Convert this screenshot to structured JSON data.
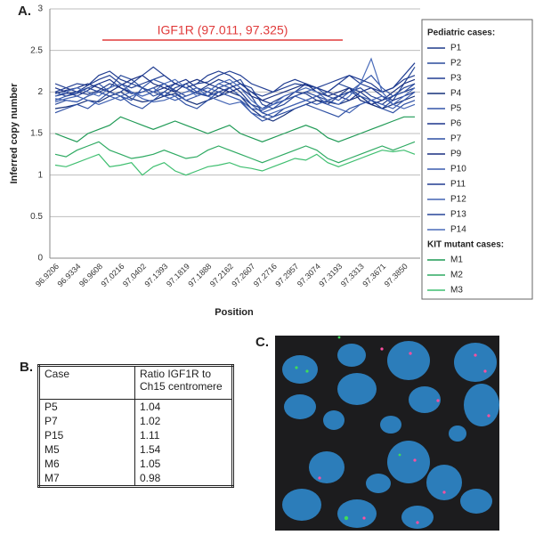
{
  "panel_labels": [
    "A.",
    "B.",
    "C."
  ],
  "chart_data": {
    "type": "line",
    "annotation": "IGF1R (97.011, 97.325)",
    "xlabel": "Position",
    "ylabel": "Inferred copy number",
    "categories": [
      "96.9206",
      null,
      "96.9334",
      null,
      "96.9608",
      null,
      "97.0216",
      null,
      "97.0402",
      null,
      "97.1393",
      null,
      "97.1819",
      null,
      "97.1888",
      null,
      "97.2162",
      null,
      "97.2607",
      null,
      "97.2716",
      null,
      "97.2957",
      null,
      "97.3074",
      null,
      "97.3193",
      null,
      "97.3313",
      null,
      "97.3671",
      null,
      "97.3850",
      null
    ],
    "ylim": [
      0,
      3
    ],
    "yticks": [
      0,
      0.5,
      1,
      1.5,
      2,
      2.5,
      3
    ],
    "grid": true,
    "series_groups": [
      {
        "title": "Pediatric cases:",
        "series": [
          {
            "name": "P1",
            "color": "#1f3a8a",
            "values": [
              1.95,
              1.98,
              2.0,
              1.97,
              2.02,
              2.1,
              2.05,
              1.98,
              2.0,
              2.05,
              2.1,
              2.02,
              1.95,
              2.0,
              2.08,
              2.15,
              2.1,
              2.0,
              1.85,
              1.8,
              1.88,
              1.95,
              2.0,
              1.98,
              1.9,
              1.85,
              1.95,
              2.05,
              2.0,
              1.9,
              1.85,
              1.95,
              2.0,
              2.05
            ]
          },
          {
            "name": "P2",
            "color": "#2a4b9b",
            "values": [
              1.85,
              1.9,
              1.88,
              1.95,
              2.0,
              2.05,
              2.2,
              2.15,
              2.05,
              1.95,
              2.0,
              2.1,
              2.05,
              1.98,
              1.95,
              2.05,
              2.1,
              2.15,
              1.95,
              1.75,
              1.7,
              1.8,
              1.85,
              1.9,
              1.95,
              2.0,
              2.1,
              2.05,
              1.95,
              1.85,
              1.8,
              1.9,
              2.1,
              2.3
            ]
          },
          {
            "name": "P3",
            "color": "#223f94",
            "values": [
              2.0,
              2.05,
              2.1,
              2.08,
              2.15,
              2.2,
              2.1,
              2.05,
              2.1,
              2.15,
              2.2,
              2.1,
              2.05,
              2.1,
              2.12,
              2.2,
              2.25,
              2.2,
              2.1,
              2.05,
              2.0,
              2.05,
              2.1,
              2.08,
              2.05,
              2.1,
              2.15,
              2.2,
              2.1,
              2.05,
              2.0,
              2.05,
              2.2,
              2.35
            ]
          },
          {
            "name": "P4",
            "color": "#15307a",
            "values": [
              1.8,
              1.82,
              1.85,
              1.9,
              1.88,
              1.95,
              2.0,
              1.92,
              1.88,
              1.9,
              1.95,
              1.98,
              1.9,
              1.85,
              1.9,
              1.95,
              2.0,
              1.95,
              1.8,
              1.7,
              1.65,
              1.72,
              1.8,
              1.85,
              1.9,
              1.88,
              1.85,
              1.9,
              1.95,
              1.85,
              1.8,
              1.85,
              1.9,
              1.95
            ]
          },
          {
            "name": "P5",
            "color": "#3355a8",
            "values": [
              1.9,
              1.95,
              2.0,
              2.05,
              2.1,
              2.0,
              1.95,
              1.9,
              2.05,
              2.15,
              2.1,
              2.0,
              1.9,
              1.95,
              2.0,
              2.1,
              2.05,
              1.95,
              1.85,
              1.75,
              1.8,
              1.9,
              1.95,
              2.0,
              2.05,
              1.95,
              1.9,
              2.0,
              2.1,
              2.2,
              2.05,
              1.95,
              2.0,
              2.1
            ]
          },
          {
            "name": "P6",
            "color": "#1c358c",
            "values": [
              2.05,
              2.0,
              1.95,
              2.02,
              2.1,
              2.15,
              2.05,
              2.0,
              1.95,
              2.0,
              2.05,
              2.1,
              2.15,
              2.05,
              2.0,
              1.95,
              2.05,
              2.1,
              2.0,
              1.9,
              1.85,
              1.9,
              2.0,
              2.1,
              2.05,
              2.0,
              1.95,
              1.9,
              2.0,
              2.05,
              1.95,
              1.9,
              1.95,
              2.0
            ]
          },
          {
            "name": "P7",
            "color": "#2d4fa3",
            "values": [
              1.75,
              1.8,
              1.85,
              1.8,
              1.9,
              2.0,
              1.95,
              1.85,
              1.8,
              1.9,
              2.0,
              1.95,
              1.85,
              1.8,
              1.9,
              2.0,
              1.95,
              1.9,
              1.75,
              1.65,
              1.7,
              1.75,
              1.8,
              1.85,
              1.8,
              1.75,
              1.7,
              1.8,
              1.85,
              1.9,
              1.8,
              1.75,
              1.85,
              1.9
            ]
          },
          {
            "name": "P9",
            "color": "#182f80",
            "values": [
              1.98,
              2.02,
              2.05,
              2.1,
              2.05,
              2.0,
              2.08,
              2.15,
              2.2,
              2.1,
              2.05,
              2.0,
              2.1,
              2.15,
              2.1,
              2.05,
              2.0,
              2.05,
              1.95,
              1.9,
              1.95,
              2.0,
              2.05,
              2.1,
              2.0,
              1.95,
              2.0,
              2.05,
              1.9,
              1.85,
              1.9,
              2.0,
              2.1,
              2.15
            ]
          },
          {
            "name": "P10",
            "color": "#3a5cae",
            "values": [
              1.92,
              1.9,
              1.88,
              1.95,
              2.0,
              1.95,
              1.9,
              1.95,
              2.0,
              2.05,
              1.95,
              1.9,
              1.95,
              2.0,
              2.05,
              2.0,
              1.95,
              1.9,
              1.8,
              1.78,
              1.85,
              1.9,
              1.95,
              1.9,
              1.85,
              1.9,
              1.95,
              2.0,
              1.95,
              1.9,
              1.85,
              1.8,
              1.9,
              2.0
            ]
          },
          {
            "name": "P11",
            "color": "#203c90",
            "values": [
              2.1,
              2.05,
              2.0,
              2.08,
              2.2,
              2.25,
              2.15,
              2.1,
              2.2,
              2.3,
              2.2,
              2.1,
              2.05,
              2.1,
              2.2,
              2.25,
              2.2,
              2.1,
              2.0,
              1.95,
              2.0,
              2.1,
              2.15,
              2.1,
              2.05,
              2.0,
              2.1,
              2.2,
              2.15,
              2.1,
              2.0,
              2.05,
              2.15,
              2.2
            ]
          },
          {
            "name": "P12",
            "color": "#4263b3",
            "values": [
              1.88,
              1.92,
              1.95,
              1.9,
              1.85,
              1.9,
              1.95,
              2.0,
              1.92,
              1.88,
              1.9,
              1.95,
              2.0,
              2.05,
              1.95,
              1.9,
              1.85,
              1.88,
              1.75,
              1.7,
              1.75,
              1.8,
              1.85,
              1.9,
              1.95,
              1.85,
              1.8,
              1.75,
              1.85,
              1.9,
              1.95,
              1.85,
              1.8,
              1.85
            ]
          },
          {
            "name": "P13",
            "color": "#264598",
            "values": [
              2.0,
              1.95,
              1.98,
              2.05,
              2.0,
              1.95,
              2.0,
              2.1,
              2.05,
              2.0,
              1.95,
              2.05,
              2.1,
              2.0,
              1.95,
              2.0,
              2.05,
              2.1,
              2.05,
              1.85,
              1.8,
              1.85,
              1.95,
              2.0,
              1.95,
              1.9,
              1.95,
              2.0,
              2.05,
              1.95,
              1.9,
              1.95,
              2.05,
              2.1
            ]
          },
          {
            "name": "P14",
            "color": "#4a6cba",
            "values": [
              1.95,
              2.0,
              2.05,
              2.0,
              1.95,
              2.05,
              2.1,
              2.0,
              1.95,
              2.0,
              2.1,
              2.15,
              2.05,
              1.95,
              2.0,
              2.1,
              2.15,
              2.05,
              1.9,
              1.8,
              1.85,
              1.95,
              2.0,
              2.05,
              2.0,
              1.9,
              1.85,
              1.95,
              2.1,
              2.4,
              2.0,
              1.85,
              1.95,
              2.05
            ]
          }
        ]
      },
      {
        "title": "KIT mutant cases:",
        "series": [
          {
            "name": "M1",
            "color": "#1f9a55",
            "values": [
              1.5,
              1.45,
              1.4,
              1.5,
              1.55,
              1.6,
              1.7,
              1.65,
              1.6,
              1.55,
              1.6,
              1.65,
              1.6,
              1.55,
              1.5,
              1.55,
              1.6,
              1.5,
              1.45,
              1.4,
              1.45,
              1.5,
              1.55,
              1.6,
              1.55,
              1.45,
              1.4,
              1.45,
              1.5,
              1.55,
              1.6,
              1.65,
              1.7,
              1.7
            ]
          },
          {
            "name": "M2",
            "color": "#2eaa62",
            "values": [
              1.25,
              1.22,
              1.3,
              1.35,
              1.4,
              1.3,
              1.25,
              1.2,
              1.22,
              1.25,
              1.3,
              1.25,
              1.2,
              1.22,
              1.3,
              1.35,
              1.3,
              1.25,
              1.2,
              1.15,
              1.2,
              1.25,
              1.3,
              1.35,
              1.3,
              1.2,
              1.15,
              1.2,
              1.25,
              1.3,
              1.35,
              1.3,
              1.35,
              1.4
            ]
          },
          {
            "name": "M3",
            "color": "#3fbf70",
            "values": [
              1.12,
              1.1,
              1.15,
              1.2,
              1.25,
              1.1,
              1.12,
              1.15,
              1.0,
              1.1,
              1.15,
              1.05,
              1.0,
              1.05,
              1.1,
              1.12,
              1.15,
              1.1,
              1.08,
              1.05,
              1.1,
              1.15,
              1.2,
              1.18,
              1.25,
              1.15,
              1.1,
              1.15,
              1.2,
              1.25,
              1.3,
              1.28,
              1.3,
              1.25
            ]
          }
        ]
      }
    ]
  },
  "table": {
    "header": [
      "Case",
      "Ratio IGF1R to Ch15 centromere"
    ],
    "rows": [
      [
        "P5",
        1.04
      ],
      [
        "P7",
        1.02
      ],
      [
        "P15",
        1.11
      ],
      [
        "M5",
        1.54
      ],
      [
        "M6",
        1.05
      ],
      [
        "M7",
        0.98
      ]
    ]
  }
}
